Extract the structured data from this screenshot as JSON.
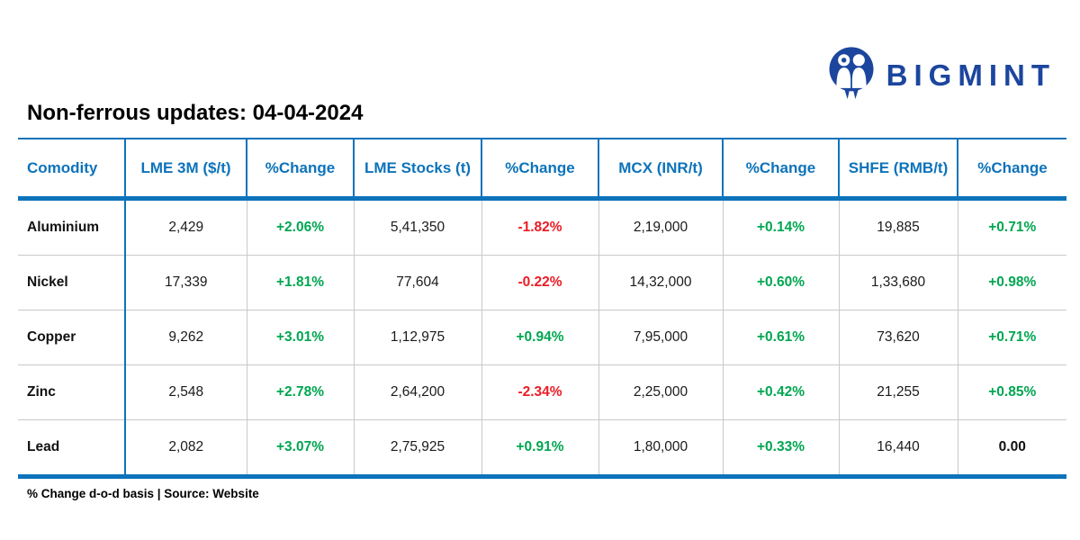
{
  "brand": {
    "name": "BIGMINT"
  },
  "title": "Non-ferrous updates: 04-04-2024",
  "footnote": "% Change d-o-d basis | Source: Website",
  "colors": {
    "header_blue": "#0d73ba",
    "brand_navy": "#1c469e",
    "positive_green": "#00a651",
    "negative_red": "#ec1c24",
    "row_divider_gray": "#c9c9c9"
  },
  "table": {
    "columns": [
      "Comodity",
      "LME 3M ($/t)",
      "%Change",
      "LME Stocks (t)",
      "%Change",
      "MCX (INR/t)",
      "%Change",
      "SHFE (RMB/t)",
      "%Change"
    ],
    "rows": [
      [
        "Aluminium",
        "2,429",
        "+2.06%",
        "5,41,350",
        "-1.82%",
        "2,19,000",
        "+0.14%",
        "19,885",
        "+0.71%"
      ],
      [
        "Nickel",
        "17,339",
        "+1.81%",
        "77,604",
        "-0.22%",
        "14,32,000",
        "+0.60%",
        "1,33,680",
        "+0.98%"
      ],
      [
        "Copper",
        "9,262",
        "+3.01%",
        "1,12,975",
        "+0.94%",
        "7,95,000",
        "+0.61%",
        "73,620",
        "+0.71%"
      ],
      [
        "Zinc",
        "2,548",
        "+2.78%",
        "2,64,200",
        "-2.34%",
        "2,25,000",
        "+0.42%",
        "21,255",
        "+0.85%"
      ],
      [
        "Lead",
        "2,082",
        "+3.07%",
        "2,75,925",
        "+0.91%",
        "1,80,000",
        "+0.33%",
        "16,440",
        "0.00"
      ]
    ]
  }
}
